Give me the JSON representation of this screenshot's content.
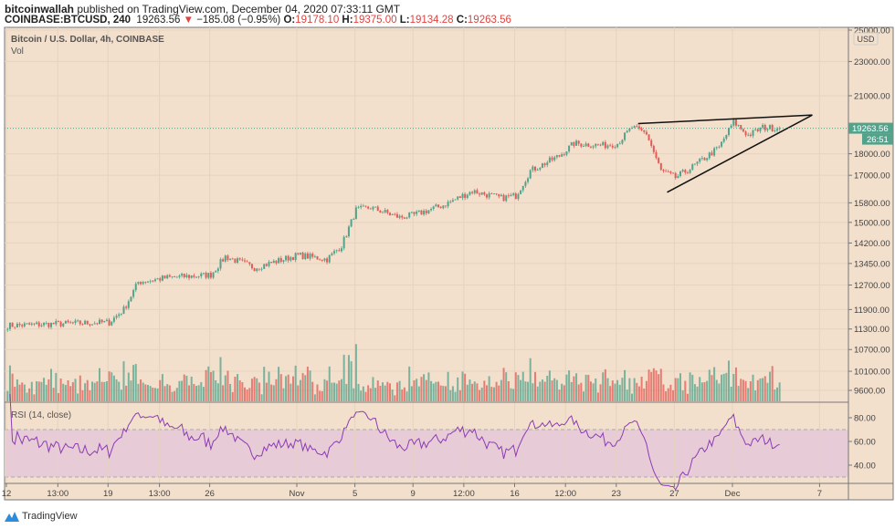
{
  "header": {
    "publisher": "bitcoinwallah",
    "published_text": "published on TradingView.com, December 04, 2020 07:33:11 GMT",
    "symbol": "COINBASE:BTCUSD, 240",
    "last": "19263.56",
    "change_icon": "triangle-down-icon",
    "change": "−185.08 (−0.95%)",
    "o_label": "O:",
    "o": "19178.10",
    "h_label": "H:",
    "h": "19375.00",
    "l_label": "L:",
    "l": "19134.28",
    "c_label": "C:",
    "c": "19263.56"
  },
  "pane": {
    "title": "Bitcoin / U.S. Dollar, 4h, COINBASE",
    "volume_label": "Vol",
    "rsi_label": "RSI (14, close)",
    "currency": "USD",
    "last_price_badge": "19263.56",
    "countdown_badge": "26:51"
  },
  "footer": {
    "brand": "TradingView",
    "logo": "tradingview-logo-icon"
  },
  "colors": {
    "background": "#f2dfcc",
    "up": "#53a38c",
    "down": "#e35b56",
    "rsi_line": "#8c3cb4",
    "rsi_band": "#e7cbd6",
    "badge": "#53a38c"
  },
  "chart_data": {
    "type": "candlestick",
    "interval": "4h",
    "y_scale": "log",
    "grid": true,
    "y_ticks": [
      "25000.00",
      "23000.00",
      "21000.00",
      "18000.00",
      "17000.00",
      "15800.00",
      "15000.00",
      "14200.00",
      "13450.00",
      "12700.00",
      "11900.00",
      "11300.00",
      "10700.00",
      "10100.00",
      "9600.00"
    ],
    "x_ticks": [
      "12",
      "13:00",
      "19",
      "13:00",
      "26",
      "Nov",
      "5",
      "9",
      "12:00",
      "16",
      "12:00",
      "23",
      "27",
      "Dec",
      "7"
    ],
    "rsi_ticks": [
      "80.00",
      "60.00",
      "40.00"
    ],
    "rsi_band": [
      30,
      70
    ],
    "approx_closes": [
      [
        "2020-10-12",
        11400
      ],
      [
        "2020-10-15",
        11450
      ],
      [
        "2020-10-19",
        11500
      ],
      [
        "2020-10-20",
        11900
      ],
      [
        "2020-10-21",
        12800
      ],
      [
        "2020-10-23",
        12950
      ],
      [
        "2020-10-26",
        13050
      ],
      [
        "2020-10-27",
        13700
      ],
      [
        "2020-10-29",
        13300
      ],
      [
        "2020-11-01",
        13750
      ],
      [
        "2020-11-03",
        13600
      ],
      [
        "2020-11-04",
        14100
      ],
      [
        "2020-11-05",
        15500
      ],
      [
        "2020-11-06",
        15600
      ],
      [
        "2020-11-08",
        15200
      ],
      [
        "2020-11-09",
        15300
      ],
      [
        "2020-11-11",
        15700
      ],
      [
        "2020-11-13",
        16300
      ],
      [
        "2020-11-15",
        16000
      ],
      [
        "2020-11-16",
        16100
      ],
      [
        "2020-11-17",
        17200
      ],
      [
        "2020-11-19",
        17900
      ],
      [
        "2020-11-20",
        18500
      ],
      [
        "2020-11-22",
        18400
      ],
      [
        "2020-11-23",
        18500
      ],
      [
        "2020-11-24",
        19300
      ],
      [
        "2020-11-25",
        19000
      ],
      [
        "2020-11-26",
        17200
      ],
      [
        "2020-11-27",
        16900
      ],
      [
        "2020-11-28",
        17300
      ],
      [
        "2020-11-30",
        18300
      ],
      [
        "2020-12-01",
        19600
      ],
      [
        "2020-12-02",
        18900
      ],
      [
        "2020-12-03",
        19300
      ],
      [
        "2020-12-04",
        19263.56
      ]
    ],
    "drawings": [
      {
        "name": "upper-trendline",
        "from": [
          "2020-11-24",
          19500
        ],
        "to": [
          "2020-12-06",
          19950
        ]
      },
      {
        "name": "lower-trendline",
        "from": [
          "2020-11-26",
          16250
        ],
        "to": [
          "2020-12-06",
          19950
        ]
      }
    ]
  }
}
